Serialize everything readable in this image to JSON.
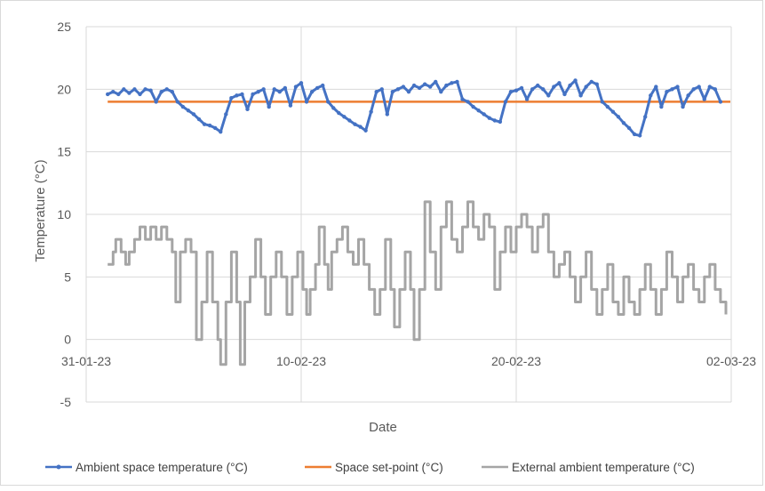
{
  "chart_data": {
    "type": "line",
    "xlabel": "Date",
    "ylabel": "Temperature (°C)",
    "ylim": [
      -5,
      25
    ],
    "y_ticks": [
      "-5",
      "0",
      "5",
      "10",
      "15",
      "20",
      "25"
    ],
    "x_range": [
      "2023-01-31",
      "2023-03-02"
    ],
    "x_tick_labels": [
      {
        "date": "2023-01-31",
        "label": "31-01-23"
      },
      {
        "date": "2023-02-10",
        "label": "10-02-23"
      },
      {
        "date": "2023-02-20",
        "label": "20-02-23"
      },
      {
        "date": "2023-03-02",
        "label": "02-03-23"
      }
    ],
    "grid": "vertical and horizontal",
    "legend": "bottom",
    "series": [
      {
        "name": "Ambient space temperature (°C)",
        "color": "#4472c4",
        "marker": "dot",
        "points": [
          [
            "2023-02-01T00:00",
            19.6
          ],
          [
            "2023-02-01T06:00",
            19.8
          ],
          [
            "2023-02-01T12:00",
            19.6
          ],
          [
            "2023-02-01T18:00",
            20.0
          ],
          [
            "2023-02-02T00:00",
            19.7
          ],
          [
            "2023-02-02T06:00",
            20.0
          ],
          [
            "2023-02-02T12:00",
            19.6
          ],
          [
            "2023-02-02T18:00",
            20.0
          ],
          [
            "2023-02-03T00:00",
            19.9
          ],
          [
            "2023-02-03T06:00",
            19.0
          ],
          [
            "2023-02-03T12:00",
            19.8
          ],
          [
            "2023-02-03T18:00",
            20.0
          ],
          [
            "2023-02-04T00:00",
            19.8
          ],
          [
            "2023-02-04T06:00",
            19.0
          ],
          [
            "2023-02-04T12:00",
            18.6
          ],
          [
            "2023-02-04T18:00",
            18.3
          ],
          [
            "2023-02-05T00:00",
            18.0
          ],
          [
            "2023-02-05T06:00",
            17.6
          ],
          [
            "2023-02-05T12:00",
            17.2
          ],
          [
            "2023-02-05T18:00",
            17.1
          ],
          [
            "2023-02-06T00:00",
            16.9
          ],
          [
            "2023-02-06T06:00",
            16.6
          ],
          [
            "2023-02-06T12:00",
            18.0
          ],
          [
            "2023-02-06T18:00",
            19.3
          ],
          [
            "2023-02-07T00:00",
            19.5
          ],
          [
            "2023-02-07T06:00",
            19.6
          ],
          [
            "2023-02-07T12:00",
            18.4
          ],
          [
            "2023-02-07T18:00",
            19.6
          ],
          [
            "2023-02-08T00:00",
            19.8
          ],
          [
            "2023-02-08T06:00",
            20.0
          ],
          [
            "2023-02-08T12:00",
            18.6
          ],
          [
            "2023-02-08T18:00",
            20.0
          ],
          [
            "2023-02-09T00:00",
            19.8
          ],
          [
            "2023-02-09T06:00",
            20.1
          ],
          [
            "2023-02-09T12:00",
            18.7
          ],
          [
            "2023-02-09T18:00",
            20.2
          ],
          [
            "2023-02-10T00:00",
            20.5
          ],
          [
            "2023-02-10T06:00",
            19.0
          ],
          [
            "2023-02-10T12:00",
            19.8
          ],
          [
            "2023-02-10T18:00",
            20.1
          ],
          [
            "2023-02-11T00:00",
            20.3
          ],
          [
            "2023-02-11T06:00",
            19.0
          ],
          [
            "2023-02-11T12:00",
            18.5
          ],
          [
            "2023-02-11T18:00",
            18.1
          ],
          [
            "2023-02-12T00:00",
            17.8
          ],
          [
            "2023-02-12T06:00",
            17.5
          ],
          [
            "2023-02-12T12:00",
            17.2
          ],
          [
            "2023-02-12T18:00",
            17.0
          ],
          [
            "2023-02-13T00:00",
            16.7
          ],
          [
            "2023-02-13T06:00",
            18.2
          ],
          [
            "2023-02-13T12:00",
            19.8
          ],
          [
            "2023-02-13T18:00",
            20.0
          ],
          [
            "2023-02-14T00:00",
            18.0
          ],
          [
            "2023-02-14T06:00",
            19.8
          ],
          [
            "2023-02-14T12:00",
            20.0
          ],
          [
            "2023-02-14T18:00",
            20.2
          ],
          [
            "2023-02-15T00:00",
            19.8
          ],
          [
            "2023-02-15T06:00",
            20.3
          ],
          [
            "2023-02-15T12:00",
            20.1
          ],
          [
            "2023-02-15T18:00",
            20.4
          ],
          [
            "2023-02-16T00:00",
            20.2
          ],
          [
            "2023-02-16T06:00",
            20.6
          ],
          [
            "2023-02-16T12:00",
            19.8
          ],
          [
            "2023-02-16T18:00",
            20.3
          ],
          [
            "2023-02-17T00:00",
            20.5
          ],
          [
            "2023-02-17T06:00",
            20.6
          ],
          [
            "2023-02-17T12:00",
            19.2
          ],
          [
            "2023-02-17T18:00",
            19.0
          ],
          [
            "2023-02-18T00:00",
            18.6
          ],
          [
            "2023-02-18T06:00",
            18.3
          ],
          [
            "2023-02-18T12:00",
            18.0
          ],
          [
            "2023-02-18T18:00",
            17.7
          ],
          [
            "2023-02-19T00:00",
            17.5
          ],
          [
            "2023-02-19T06:00",
            17.4
          ],
          [
            "2023-02-19T12:00",
            19.0
          ],
          [
            "2023-02-19T18:00",
            19.8
          ],
          [
            "2023-02-20T00:00",
            19.9
          ],
          [
            "2023-02-20T06:00",
            20.1
          ],
          [
            "2023-02-20T12:00",
            19.2
          ],
          [
            "2023-02-20T18:00",
            20.0
          ],
          [
            "2023-02-21T00:00",
            20.3
          ],
          [
            "2023-02-21T06:00",
            20.0
          ],
          [
            "2023-02-21T12:00",
            19.5
          ],
          [
            "2023-02-21T18:00",
            20.2
          ],
          [
            "2023-02-22T00:00",
            20.5
          ],
          [
            "2023-02-22T06:00",
            19.6
          ],
          [
            "2023-02-22T12:00",
            20.3
          ],
          [
            "2023-02-22T18:00",
            20.7
          ],
          [
            "2023-02-23T00:00",
            19.5
          ],
          [
            "2023-02-23T06:00",
            20.2
          ],
          [
            "2023-02-23T12:00",
            20.6
          ],
          [
            "2023-02-23T18:00",
            20.4
          ],
          [
            "2023-02-24T00:00",
            19.0
          ],
          [
            "2023-02-24T06:00",
            18.6
          ],
          [
            "2023-02-24T12:00",
            18.2
          ],
          [
            "2023-02-24T18:00",
            17.8
          ],
          [
            "2023-02-25T00:00",
            17.3
          ],
          [
            "2023-02-25T06:00",
            16.9
          ],
          [
            "2023-02-25T12:00",
            16.4
          ],
          [
            "2023-02-25T18:00",
            16.3
          ],
          [
            "2023-02-26T00:00",
            17.8
          ],
          [
            "2023-02-26T06:00",
            19.5
          ],
          [
            "2023-02-26T12:00",
            20.2
          ],
          [
            "2023-02-26T18:00",
            18.6
          ],
          [
            "2023-02-27T00:00",
            19.8
          ],
          [
            "2023-02-27T06:00",
            20.0
          ],
          [
            "2023-02-27T12:00",
            20.2
          ],
          [
            "2023-02-27T18:00",
            18.6
          ],
          [
            "2023-02-28T00:00",
            19.5
          ],
          [
            "2023-02-28T06:00",
            20.0
          ],
          [
            "2023-02-28T12:00",
            20.2
          ],
          [
            "2023-02-28T18:00",
            19.2
          ],
          [
            "2023-03-01T00:00",
            20.2
          ],
          [
            "2023-03-01T06:00",
            20.0
          ],
          [
            "2023-03-01T12:00",
            19.0
          ]
        ]
      },
      {
        "name": "Space set-point (°C)",
        "color": "#ed7d31",
        "points": [
          [
            "2023-02-01T00:00",
            19.0
          ],
          [
            "2023-03-01T23:00",
            19.0
          ]
        ]
      },
      {
        "name": "External ambient temperature (°C)",
        "color": "#a5a5a5",
        "step": true,
        "points": [
          [
            "2023-02-01T00:00",
            6
          ],
          [
            "2023-02-01T06:00",
            7
          ],
          [
            "2023-02-01T09:00",
            8
          ],
          [
            "2023-02-01T15:00",
            7
          ],
          [
            "2023-02-01T20:00",
            6
          ],
          [
            "2023-02-02T00:00",
            7
          ],
          [
            "2023-02-02T06:00",
            8
          ],
          [
            "2023-02-02T12:00",
            9
          ],
          [
            "2023-02-02T18:00",
            8
          ],
          [
            "2023-02-03T00:00",
            9
          ],
          [
            "2023-02-03T06:00",
            8
          ],
          [
            "2023-02-03T12:00",
            9
          ],
          [
            "2023-02-03T18:00",
            8
          ],
          [
            "2023-02-04T00:00",
            7
          ],
          [
            "2023-02-04T04:00",
            3
          ],
          [
            "2023-02-04T09:00",
            7
          ],
          [
            "2023-02-04T15:00",
            8
          ],
          [
            "2023-02-04T21:00",
            7
          ],
          [
            "2023-02-05T03:00",
            0
          ],
          [
            "2023-02-05T09:00",
            3
          ],
          [
            "2023-02-05T15:00",
            7
          ],
          [
            "2023-02-05T21:00",
            3
          ],
          [
            "2023-02-06T03:00",
            0
          ],
          [
            "2023-02-06T06:00",
            -2
          ],
          [
            "2023-02-06T12:00",
            3
          ],
          [
            "2023-02-06T18:00",
            7
          ],
          [
            "2023-02-07T00:00",
            3
          ],
          [
            "2023-02-07T04:00",
            -2
          ],
          [
            "2023-02-07T09:00",
            3
          ],
          [
            "2023-02-07T15:00",
            5
          ],
          [
            "2023-02-07T21:00",
            8
          ],
          [
            "2023-02-08T03:00",
            5
          ],
          [
            "2023-02-08T08:00",
            2
          ],
          [
            "2023-02-08T14:00",
            5
          ],
          [
            "2023-02-08T20:00",
            7
          ],
          [
            "2023-02-09T02:00",
            5
          ],
          [
            "2023-02-09T08:00",
            2
          ],
          [
            "2023-02-09T14:00",
            5
          ],
          [
            "2023-02-09T20:00",
            7
          ],
          [
            "2023-02-10T02:00",
            4
          ],
          [
            "2023-02-10T06:00",
            2
          ],
          [
            "2023-02-10T10:00",
            4
          ],
          [
            "2023-02-10T16:00",
            6
          ],
          [
            "2023-02-10T20:00",
            9
          ],
          [
            "2023-02-11T02:00",
            6
          ],
          [
            "2023-02-11T06:00",
            4
          ],
          [
            "2023-02-11T10:00",
            7
          ],
          [
            "2023-02-11T16:00",
            8
          ],
          [
            "2023-02-11T22:00",
            9
          ],
          [
            "2023-02-12T04:00",
            7
          ],
          [
            "2023-02-12T10:00",
            6
          ],
          [
            "2023-02-12T16:00",
            8
          ],
          [
            "2023-02-12T22:00",
            6
          ],
          [
            "2023-02-13T04:00",
            4
          ],
          [
            "2023-02-13T10:00",
            2
          ],
          [
            "2023-02-13T16:00",
            4
          ],
          [
            "2023-02-13T22:00",
            8
          ],
          [
            "2023-02-14T04:00",
            4
          ],
          [
            "2023-02-14T08:00",
            1
          ],
          [
            "2023-02-14T14:00",
            4
          ],
          [
            "2023-02-14T20:00",
            7
          ],
          [
            "2023-02-15T02:00",
            4
          ],
          [
            "2023-02-15T06:00",
            0
          ],
          [
            "2023-02-15T12:00",
            4
          ],
          [
            "2023-02-15T18:00",
            11
          ],
          [
            "2023-02-16T00:00",
            7
          ],
          [
            "2023-02-16T06:00",
            4
          ],
          [
            "2023-02-16T12:00",
            9
          ],
          [
            "2023-02-16T18:00",
            11
          ],
          [
            "2023-02-17T00:00",
            8
          ],
          [
            "2023-02-17T06:00",
            7
          ],
          [
            "2023-02-17T12:00",
            9
          ],
          [
            "2023-02-17T18:00",
            11
          ],
          [
            "2023-02-18T00:00",
            9
          ],
          [
            "2023-02-18T06:00",
            8
          ],
          [
            "2023-02-18T12:00",
            10
          ],
          [
            "2023-02-18T18:00",
            9
          ],
          [
            "2023-02-19T00:00",
            4
          ],
          [
            "2023-02-19T06:00",
            7
          ],
          [
            "2023-02-19T12:00",
            9
          ],
          [
            "2023-02-19T18:00",
            7
          ],
          [
            "2023-02-20T00:00",
            9
          ],
          [
            "2023-02-20T06:00",
            10
          ],
          [
            "2023-02-20T12:00",
            9
          ],
          [
            "2023-02-20T18:00",
            7
          ],
          [
            "2023-02-21T00:00",
            9
          ],
          [
            "2023-02-21T06:00",
            10
          ],
          [
            "2023-02-21T12:00",
            7
          ],
          [
            "2023-02-21T18:00",
            5
          ],
          [
            "2023-02-22T00:00",
            6
          ],
          [
            "2023-02-22T06:00",
            7
          ],
          [
            "2023-02-22T12:00",
            5
          ],
          [
            "2023-02-22T18:00",
            3
          ],
          [
            "2023-02-23T00:00",
            5
          ],
          [
            "2023-02-23T06:00",
            7
          ],
          [
            "2023-02-23T12:00",
            4
          ],
          [
            "2023-02-23T18:00",
            2
          ],
          [
            "2023-02-24T00:00",
            4
          ],
          [
            "2023-02-24T06:00",
            6
          ],
          [
            "2023-02-24T12:00",
            3
          ],
          [
            "2023-02-24T18:00",
            2
          ],
          [
            "2023-02-25T00:00",
            5
          ],
          [
            "2023-02-25T06:00",
            3
          ],
          [
            "2023-02-25T12:00",
            2
          ],
          [
            "2023-02-25T18:00",
            4
          ],
          [
            "2023-02-26T00:00",
            6
          ],
          [
            "2023-02-26T06:00",
            4
          ],
          [
            "2023-02-26T12:00",
            2
          ],
          [
            "2023-02-26T18:00",
            4
          ],
          [
            "2023-02-27T00:00",
            7
          ],
          [
            "2023-02-27T06:00",
            5
          ],
          [
            "2023-02-27T12:00",
            3
          ],
          [
            "2023-02-27T18:00",
            5
          ],
          [
            "2023-02-28T00:00",
            6
          ],
          [
            "2023-02-28T06:00",
            4
          ],
          [
            "2023-02-28T12:00",
            3
          ],
          [
            "2023-02-28T18:00",
            5
          ],
          [
            "2023-03-01T00:00",
            6
          ],
          [
            "2023-03-01T06:00",
            4
          ],
          [
            "2023-03-01T12:00",
            3
          ],
          [
            "2023-03-01T18:00",
            2
          ]
        ]
      }
    ]
  }
}
